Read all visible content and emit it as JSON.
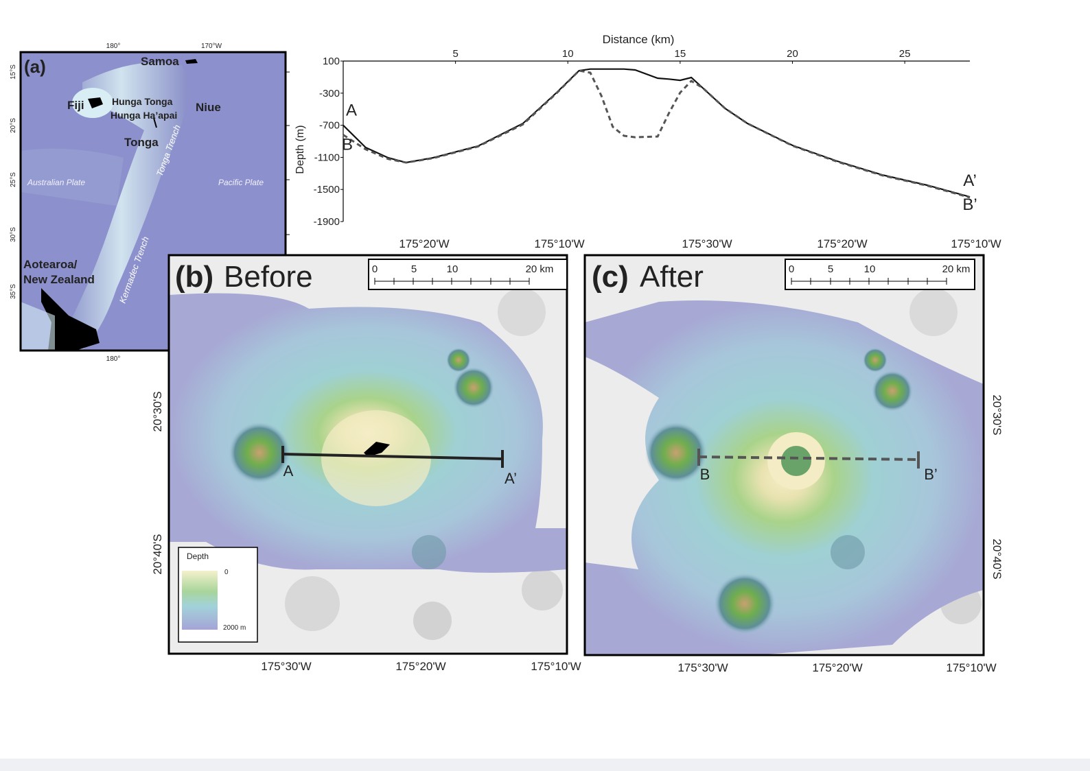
{
  "chart_data": {
    "type": "line",
    "x_label": "Distance (km)",
    "y_label": "Depth (m)",
    "xlim": [
      0,
      27.9
    ],
    "xticks": [
      5,
      10,
      15,
      20,
      25
    ],
    "ylim": [
      -1900,
      100
    ],
    "yticks": [
      100,
      -300,
      -700,
      -1100,
      -1500,
      -1900
    ],
    "grid": false,
    "series": [
      {
        "color": "#111111",
        "dashed": false,
        "start_label": "A",
        "end_label": "A’",
        "x": [
          0,
          1,
          2,
          2.8,
          4,
          6,
          8,
          9.5,
          10.5,
          11,
          11.5,
          12,
          12.5,
          13,
          14,
          14.5,
          15,
          15.5,
          16,
          17,
          18,
          20,
          22,
          24,
          26,
          27.9
        ],
        "values": [
          -700,
          -977,
          -1105,
          -1165,
          -1105,
          -960,
          -678,
          -293,
          -20,
          0,
          0,
          0,
          0,
          -11,
          -114,
          -125,
          -140,
          -105,
          -233,
          -490,
          -678,
          -950,
          -1148,
          -1319,
          -1447,
          -1592
        ]
      },
      {
        "color": "#555555",
        "dashed": true,
        "start_label": "B",
        "end_label": "B’",
        "x": [
          0,
          1,
          2,
          2.8,
          4,
          6,
          8,
          9.5,
          10.5,
          11,
          11.5,
          12,
          12.5,
          13,
          14,
          14.5,
          15,
          15.5,
          16,
          17,
          18,
          20,
          22,
          24,
          26,
          27.9
        ],
        "values": [
          -820,
          -1000,
          -1120,
          -1165,
          -1110,
          -965,
          -690,
          -300,
          -20,
          -45,
          -336,
          -720,
          -832,
          -850,
          -840,
          -550,
          -293,
          -148,
          -233,
          -490,
          -678,
          -955,
          -1155,
          -1325,
          -1452,
          -1600
        ]
      }
    ]
  },
  "maps": {
    "a": {
      "label": "(a)",
      "lon_ticks_top": [
        "180°",
        "170°W"
      ],
      "lon_ticks_bottom": [
        "180°"
      ],
      "lat_ticks": [
        "15°S",
        "20°S",
        "25°S",
        "30°S",
        "35°S"
      ],
      "places": [
        "Samoa",
        "Fiji",
        "Hunga Tonga",
        "Hunga Ha’apai",
        "Niue",
        "Tonga",
        "Tonga Trench",
        "Australian Plate",
        "Pacific Plate",
        "Kermadec Trench",
        "Aotearoa/",
        "New Zealand"
      ]
    },
    "b": {
      "label": "(b)",
      "title": "Before",
      "scale_ticks": [
        "0",
        "5",
        "10",
        "20 km"
      ],
      "lon_ticks_top": [
        "175°20'W",
        "175°10'W"
      ],
      "lon_ticks_bottom": [
        "175°30'W",
        "175°20'W",
        "175°10'W"
      ],
      "lat_ticks": [
        "20°30'S",
        "20°40'S"
      ],
      "profile_labels": [
        "A",
        "A’"
      ],
      "legend": {
        "title": "Depth",
        "top": "0",
        "bottom": "2000 m"
      }
    },
    "c": {
      "label": "(c)",
      "title": "After",
      "scale_ticks": [
        "0",
        "5",
        "10",
        "20 km"
      ],
      "lon_ticks_top": [
        "175°30'W",
        "175°20'W",
        "175°10'W"
      ],
      "lon_ticks_bottom": [
        "175°30'W",
        "175°20'W",
        "175°10'W"
      ],
      "lat_ticks": [
        "20°30'S",
        "20°40'S"
      ],
      "profile_labels": [
        "B",
        "B’"
      ]
    }
  }
}
